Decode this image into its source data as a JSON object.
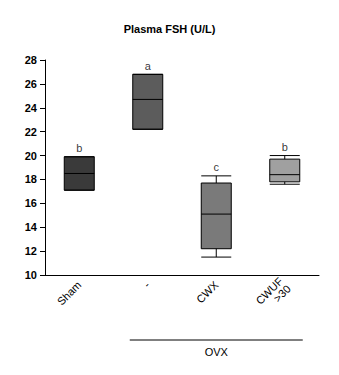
{
  "chart_data": {
    "type": "boxplot",
    "title": "Plasma FSH (U/L)",
    "categories": [
      "Sham",
      "-",
      "CWX",
      "CWUF\n>30"
    ],
    "values": [
      [
        17.1,
        17.1,
        18.5,
        19.9,
        19.9
      ],
      [
        22.2,
        22.2,
        24.7,
        26.8,
        26.8
      ],
      [
        11.5,
        12.2,
        15.1,
        17.7,
        18.3
      ],
      [
        17.6,
        17.8,
        18.4,
        19.7,
        20.0
      ]
    ],
    "colors": [
      "#3a3a3a",
      "#5c5c5c",
      "#7a7a7a",
      "#a0a0a0"
    ],
    "annotations": [
      "b",
      "a",
      "c",
      "b"
    ],
    "group": {
      "label": "OVX",
      "categories": [
        "-",
        "CWX",
        "CWUF\n>30"
      ]
    },
    "ylim": [
      10,
      28
    ],
    "yticks": [
      10,
      12,
      14,
      16,
      18,
      20,
      22,
      24,
      26,
      28
    ],
    "grid": false
  }
}
